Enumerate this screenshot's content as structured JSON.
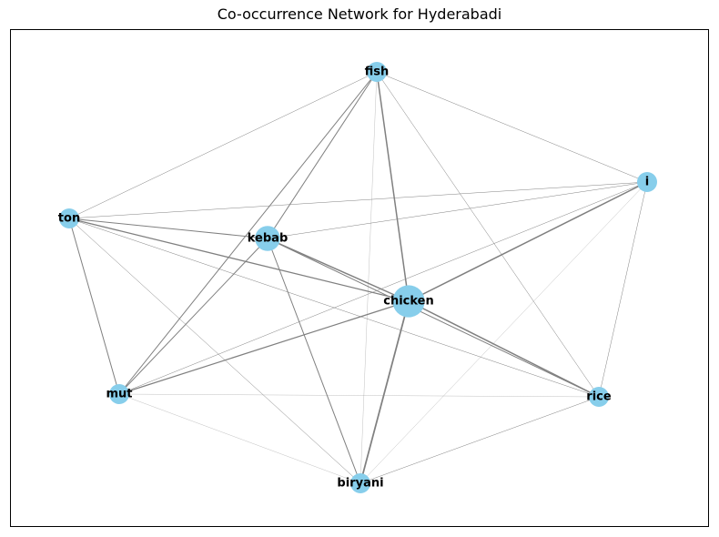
{
  "title": "Co-occurrence Network for Hyderabadi",
  "colors": {
    "node": "#87ceeb",
    "edge": "#808080",
    "text": "#000000"
  },
  "nodes": [
    {
      "id": "fish",
      "label": "fish",
      "size": 1.0
    },
    {
      "id": "i",
      "label": "i",
      "size": 1.0
    },
    {
      "id": "ton",
      "label": "ton",
      "size": 1.0
    },
    {
      "id": "kebab",
      "label": "kebab",
      "size": 1.25
    },
    {
      "id": "chicken",
      "label": "chicken",
      "size": 1.6
    },
    {
      "id": "mut",
      "label": "mut",
      "size": 1.0
    },
    {
      "id": "rice",
      "label": "rice",
      "size": 1.0
    },
    {
      "id": "biryani",
      "label": "biryani",
      "size": 1.0
    }
  ],
  "edges": [
    {
      "source": "fish",
      "target": "chicken",
      "weight": 3
    },
    {
      "source": "fish",
      "target": "kebab",
      "weight": 2
    },
    {
      "source": "fish",
      "target": "mut",
      "weight": 2
    },
    {
      "source": "fish",
      "target": "ton",
      "weight": 1
    },
    {
      "source": "fish",
      "target": "i",
      "weight": 1
    },
    {
      "source": "fish",
      "target": "rice",
      "weight": 1
    },
    {
      "source": "fish",
      "target": "biryani",
      "weight": 0.5
    },
    {
      "source": "i",
      "target": "chicken",
      "weight": 3
    },
    {
      "source": "i",
      "target": "ton",
      "weight": 1
    },
    {
      "source": "i",
      "target": "kebab",
      "weight": 1
    },
    {
      "source": "i",
      "target": "mut",
      "weight": 1
    },
    {
      "source": "i",
      "target": "rice",
      "weight": 1
    },
    {
      "source": "i",
      "target": "biryani",
      "weight": 0.5
    },
    {
      "source": "ton",
      "target": "kebab",
      "weight": 2
    },
    {
      "source": "ton",
      "target": "chicken",
      "weight": 2.5
    },
    {
      "source": "ton",
      "target": "mut",
      "weight": 2
    },
    {
      "source": "ton",
      "target": "rice",
      "weight": 1
    },
    {
      "source": "ton",
      "target": "biryani",
      "weight": 1
    },
    {
      "source": "kebab",
      "target": "chicken",
      "weight": 3
    },
    {
      "source": "kebab",
      "target": "mut",
      "weight": 2
    },
    {
      "source": "kebab",
      "target": "biryani",
      "weight": 2
    },
    {
      "source": "kebab",
      "target": "rice",
      "weight": 2
    },
    {
      "source": "chicken",
      "target": "mut",
      "weight": 2.5
    },
    {
      "source": "chicken",
      "target": "rice",
      "weight": 3
    },
    {
      "source": "chicken",
      "target": "biryani",
      "weight": 3.5
    },
    {
      "source": "mut",
      "target": "rice",
      "weight": 0.5
    },
    {
      "source": "mut",
      "target": "biryani",
      "weight": 0.5
    },
    {
      "source": "rice",
      "target": "biryani",
      "weight": 1
    }
  ]
}
